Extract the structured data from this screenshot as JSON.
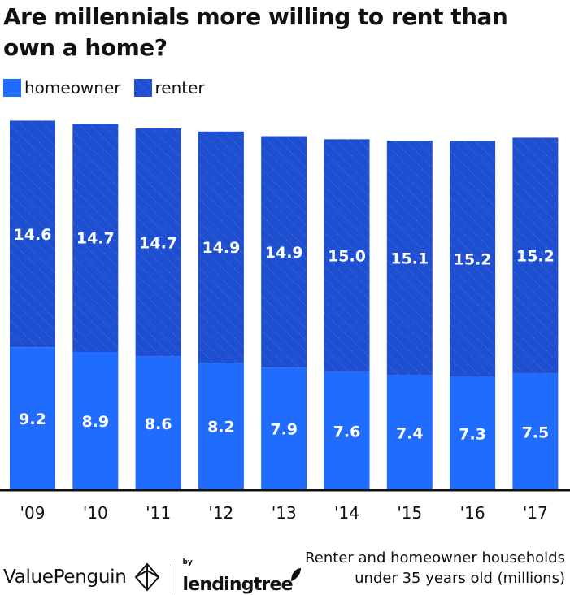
{
  "chart_data": {
    "type": "bar",
    "stacked": true,
    "title": "Are millennials more willing to rent than own a home?",
    "categories": [
      "'09",
      "'10",
      "'11",
      "'12",
      "'13",
      "'14",
      "'15",
      "'16",
      "'17"
    ],
    "series": [
      {
        "name": "homeowner",
        "values": [
          9.2,
          8.9,
          8.6,
          8.2,
          7.9,
          7.6,
          7.4,
          7.3,
          7.5
        ],
        "color": "#1f6cff"
      },
      {
        "name": "renter",
        "values": [
          14.6,
          14.7,
          14.7,
          14.9,
          14.9,
          15.0,
          15.1,
          15.2,
          15.2
        ],
        "color": "#1f4fd1"
      }
    ],
    "value_labels": {
      "homeowner": [
        "9.2",
        "8.9",
        "8.6",
        "8.2",
        "7.9",
        "7.6",
        "7.4",
        "7.3",
        "7.5"
      ],
      "renter": [
        "14.6",
        "14.7",
        "14.7",
        "14.9",
        "14.9",
        "15.0",
        "15.1",
        "15.2",
        "15.2"
      ]
    },
    "legend_position": "top-left",
    "grid": false,
    "note": "Renter and homeowner households under 35 years old (millions)"
  },
  "footer": {
    "brand": "ValuePenguin",
    "by_label": "by",
    "partner": "lendingtree",
    "note_line1": "Renter and homeowner households",
    "note_line2": "under 35 years old (millions)"
  },
  "colors": {
    "homeowner": "#1f6cff",
    "renter": "#1f4fd1",
    "label": "#ffffff"
  }
}
